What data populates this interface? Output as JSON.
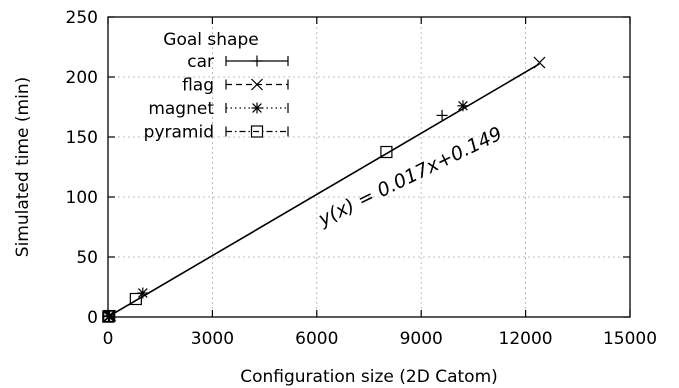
{
  "chart_data": {
    "type": "scatter",
    "xlabel": "Configuration size (2D Catom)",
    "ylabel": "Simulated time (min)",
    "xlim": [
      0,
      15000
    ],
    "ylim": [
      0,
      250
    ],
    "xticks": [
      0,
      3000,
      6000,
      9000,
      12000,
      15000
    ],
    "yticks": [
      0,
      50,
      100,
      150,
      200,
      250
    ],
    "grid": true,
    "legend": {
      "title": "Goal shape",
      "position": "top-left"
    },
    "series": [
      {
        "name": "car",
        "marker": "plus",
        "line": "solid",
        "points": [
          [
            12,
            0.4
          ],
          [
            45,
            0.9
          ],
          [
            9600,
            168
          ]
        ]
      },
      {
        "name": "flag",
        "marker": "cross",
        "line": "dashed",
        "points": [
          [
            20,
            0.5
          ],
          [
            60,
            1.1
          ],
          [
            12400,
            212
          ]
        ]
      },
      {
        "name": "magnet",
        "marker": "star",
        "line": "dotted",
        "points": [
          [
            30,
            0.7
          ],
          [
            1000,
            20
          ],
          [
            10200,
            176
          ]
        ]
      },
      {
        "name": "pyramid",
        "marker": "square",
        "line": "dashdot",
        "points": [
          [
            8,
            0.3
          ],
          [
            35,
            0.8
          ],
          [
            800,
            15
          ],
          [
            8000,
            137.5
          ]
        ]
      }
    ],
    "fit": {
      "slope": 0.017,
      "intercept": 0.149,
      "x_range": [
        0,
        12400
      ]
    },
    "annotation": "y(x) = 0.017x+0.149"
  }
}
